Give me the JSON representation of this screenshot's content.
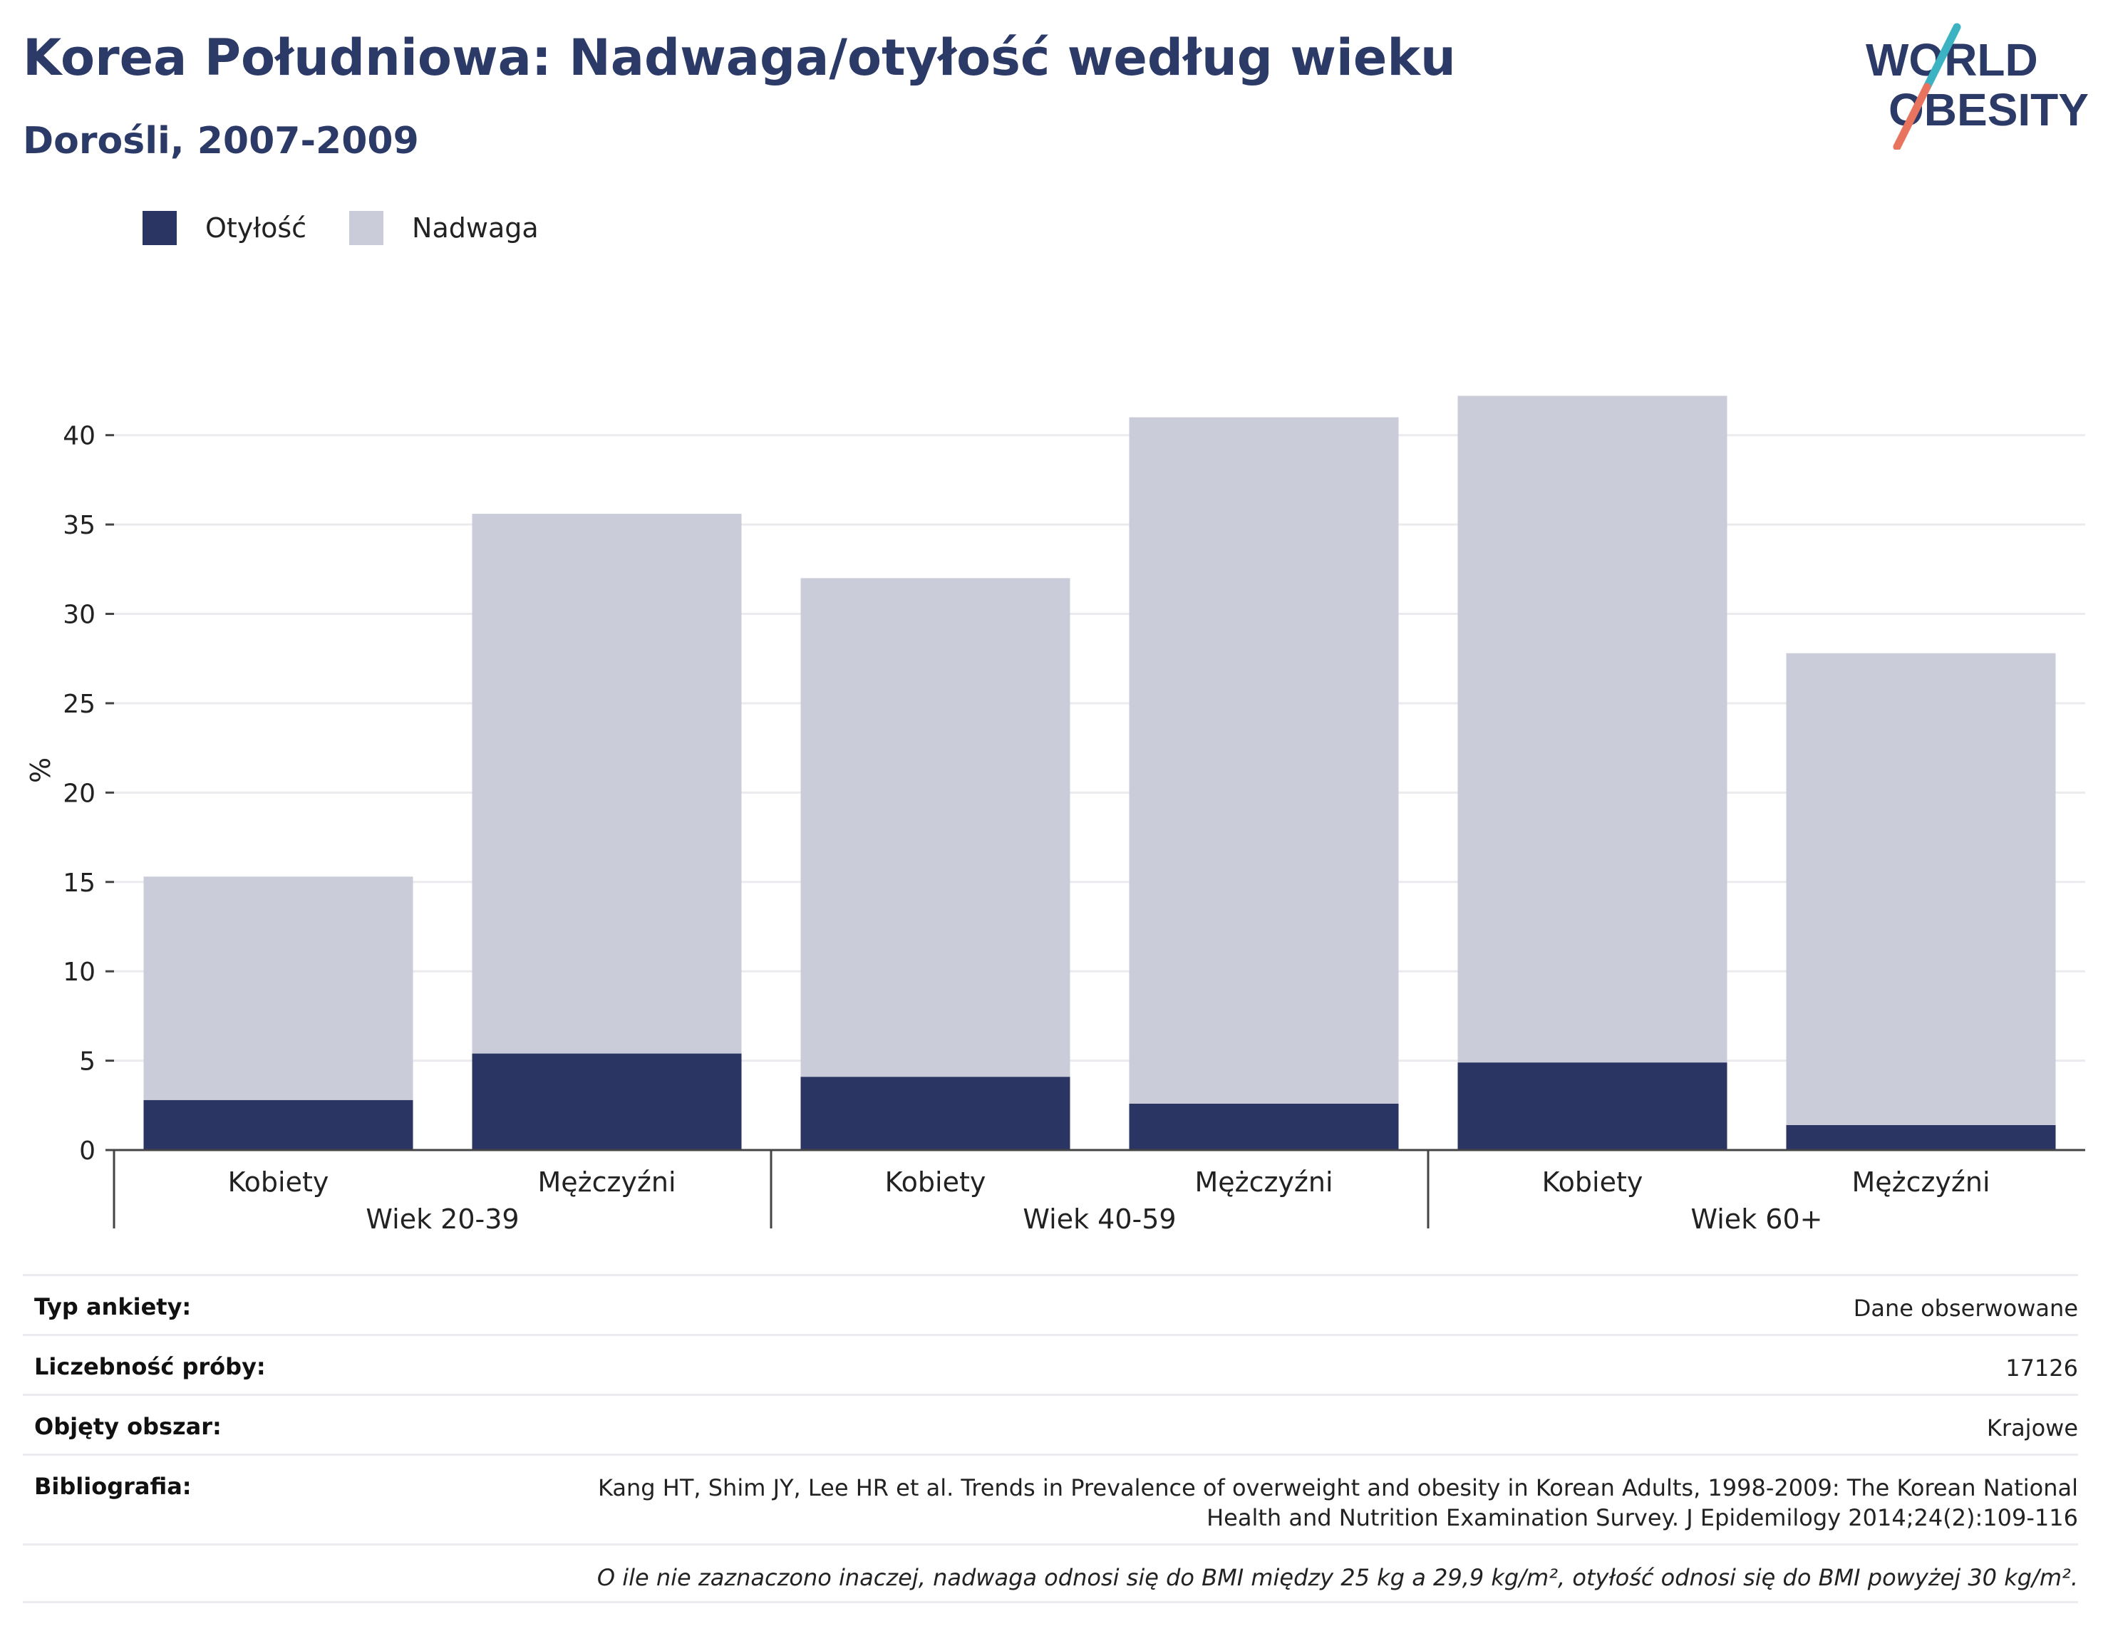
{
  "header": {
    "title": "Korea Południowa: Nadwaga/otyłość według wieku",
    "subtitle": "Dorośli, 2007-2009"
  },
  "logo": {
    "line1": "WORLD",
    "line2": "OBESITY"
  },
  "colors": {
    "obesity": "#2b3564",
    "overweight": "#cacdd9",
    "title": "#2b3a67",
    "logo_teal": "#3bb3c3",
    "logo_coral": "#e8735f"
  },
  "legend": [
    {
      "label": "Otyłość",
      "color": "#2b3564"
    },
    {
      "label": "Nadwaga",
      "color": "#cacdd9"
    }
  ],
  "chart_data": {
    "type": "bar",
    "stacked": true,
    "ylabel": "%",
    "ylim": [
      0,
      42.5
    ],
    "yticks": [
      0,
      5,
      10,
      15,
      20,
      25,
      30,
      35,
      40
    ],
    "grid": true,
    "legend_position": "top-left",
    "groups": [
      "Wiek 20-39",
      "Wiek 40-59",
      "Wiek 60+"
    ],
    "categories": [
      "Kobiety",
      "Mężczyźni",
      "Kobiety",
      "Mężczyźni",
      "Kobiety",
      "Mężczyźni"
    ],
    "series": [
      {
        "name": "Otyłość",
        "values": [
          2.8,
          5.4,
          4.1,
          2.6,
          4.9,
          1.4
        ]
      },
      {
        "name": "Nadwaga",
        "values": [
          12.5,
          30.2,
          27.9,
          38.4,
          37.3,
          26.4
        ]
      }
    ]
  },
  "info": {
    "survey_type_label": "Typ ankiety:",
    "survey_type_value": "Dane obserwowane",
    "sample_label": "Liczebność próby:",
    "sample_value": "17126",
    "area_label": "Objęty obszar:",
    "area_value": "Krajowe",
    "bib_label": "Bibliografia:",
    "bib_line1": "Kang HT, Shim JY, Lee HR et al. Trends in Prevalence of overweight and obesity in Korean Adults, 1998-2009: The Korean National",
    "bib_line2": "Health and Nutrition Examination Survey. J Epidemilogy 2014;24(2):109-116",
    "note": "O ile nie zaznaczono inaczej, nadwaga odnosi się do BMI między 25 kg a 29,9 kg/m², otyłość odnosi się do BMI powyżej 30 kg/m²."
  }
}
